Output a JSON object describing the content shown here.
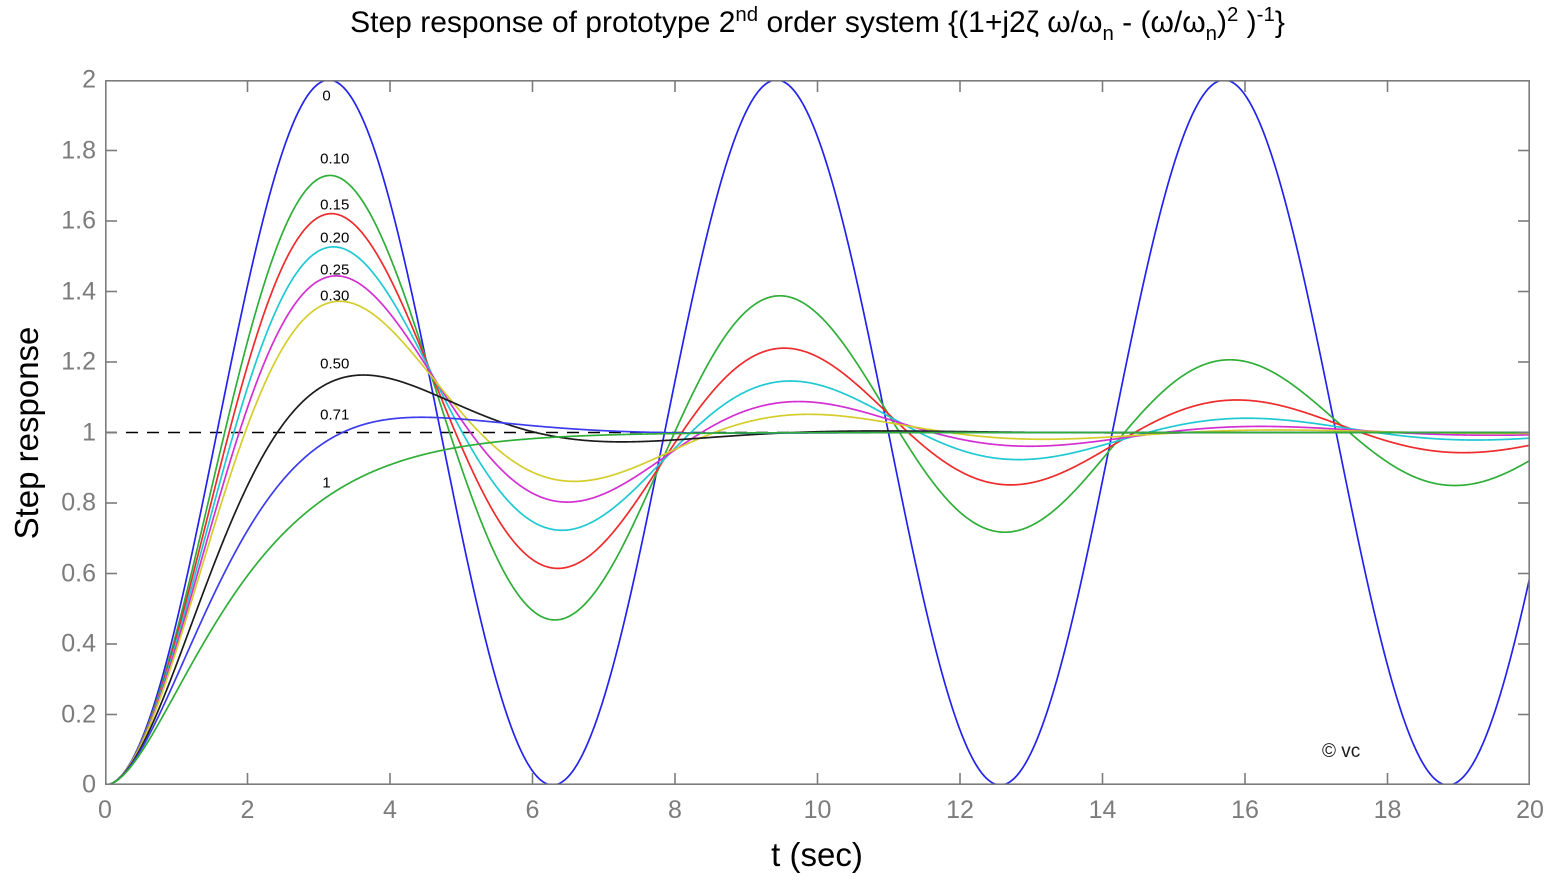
{
  "figure": {
    "title_parts": [
      {
        "text": "Step response of prototype 2"
      },
      {
        "text": "nd",
        "style": "sup"
      },
      {
        "text": " order system {(1+j2ζ ω/ω"
      },
      {
        "text": "n",
        "style": "sub"
      },
      {
        "text": " - (ω/ω"
      },
      {
        "text": "n",
        "style": "sub"
      },
      {
        "text": ")"
      },
      {
        "text": "2",
        "style": "sup"
      },
      {
        "text": " )"
      },
      {
        "text": "-1",
        "style": "sup"
      },
      {
        "text": "}"
      }
    ],
    "watermark": {
      "text": "© vc",
      "t": 17.08,
      "y": 0.095
    }
  },
  "chart_data": {
    "type": "line",
    "title": "Step response of prototype 2nd order system {(1+j2ζ ω/ω_n - (ω/ω_n)^2 )^-1}",
    "xlabel": "t (sec)",
    "ylabel": "Step response",
    "xlim": [
      0,
      20
    ],
    "ylim": [
      0,
      2
    ],
    "x_ticks": [
      "0",
      "2",
      "4",
      "6",
      "8",
      "10",
      "12",
      "14",
      "16",
      "18",
      "20"
    ],
    "y_ticks": [
      "0",
      "0.2",
      "0.4",
      "0.6",
      "0.8",
      "1",
      "1.2",
      "1.4",
      "1.6",
      "1.8",
      "2"
    ],
    "grid": false,
    "legend_position": "inline curve labels at first peak",
    "axis_color": "#7c7c7c",
    "omega_n": 1,
    "curve_model": "underdamped: y(t) = 1 - exp(-zeta*t)*sin(sqrt(1-zeta^2)*t + acos(zeta))/sqrt(1-zeta^2); critically damped (zeta=1): y(t) = 1 - exp(-t)*(1+t)",
    "series": [
      {
        "label": "0",
        "zeta": 0,
        "color": "#2323ee",
        "peak_value": 2.0,
        "label_pos": {
          "t": 3.05,
          "y": 1.955
        }
      },
      {
        "label": "0.10",
        "zeta": 0.1,
        "color": "#2fae38",
        "peak_value": 1.73,
        "label_pos": {
          "t": 3.02,
          "y": 1.775
        }
      },
      {
        "label": "0.15",
        "zeta": 0.15,
        "color": "#ef2b2b",
        "peak_value": 1.62,
        "label_pos": {
          "t": 3.02,
          "y": 1.645
        }
      },
      {
        "label": "0.20",
        "zeta": 0.2,
        "color": "#1ec9d3",
        "peak_value": 1.53,
        "label_pos": {
          "t": 3.02,
          "y": 1.553
        }
      },
      {
        "label": "0.25",
        "zeta": 0.25,
        "color": "#d32fd3",
        "peak_value": 1.44,
        "label_pos": {
          "t": 3.02,
          "y": 1.46
        }
      },
      {
        "label": "0.30",
        "zeta": 0.3,
        "color": "#d5cd2b",
        "peak_value": 1.37,
        "label_pos": {
          "t": 3.02,
          "y": 1.388
        }
      },
      {
        "label": "0.50",
        "zeta": 0.5,
        "color": "#1c1c1c",
        "peak_value": 1.16,
        "label_pos": {
          "t": 3.02,
          "y": 1.193
        }
      },
      {
        "label": "0.71",
        "zeta": 0.7071,
        "color": "#3c3cee",
        "peak_value": 1.04,
        "label_pos": {
          "t": 3.02,
          "y": 1.05
        }
      },
      {
        "label": "1",
        "zeta": 1,
        "color": "#2fae38",
        "peak_value": 1.0,
        "label_pos": {
          "t": 3.05,
          "y": 0.857
        }
      }
    ],
    "reference_line": {
      "y": 1,
      "style": "dashed",
      "color": "#000000"
    }
  }
}
